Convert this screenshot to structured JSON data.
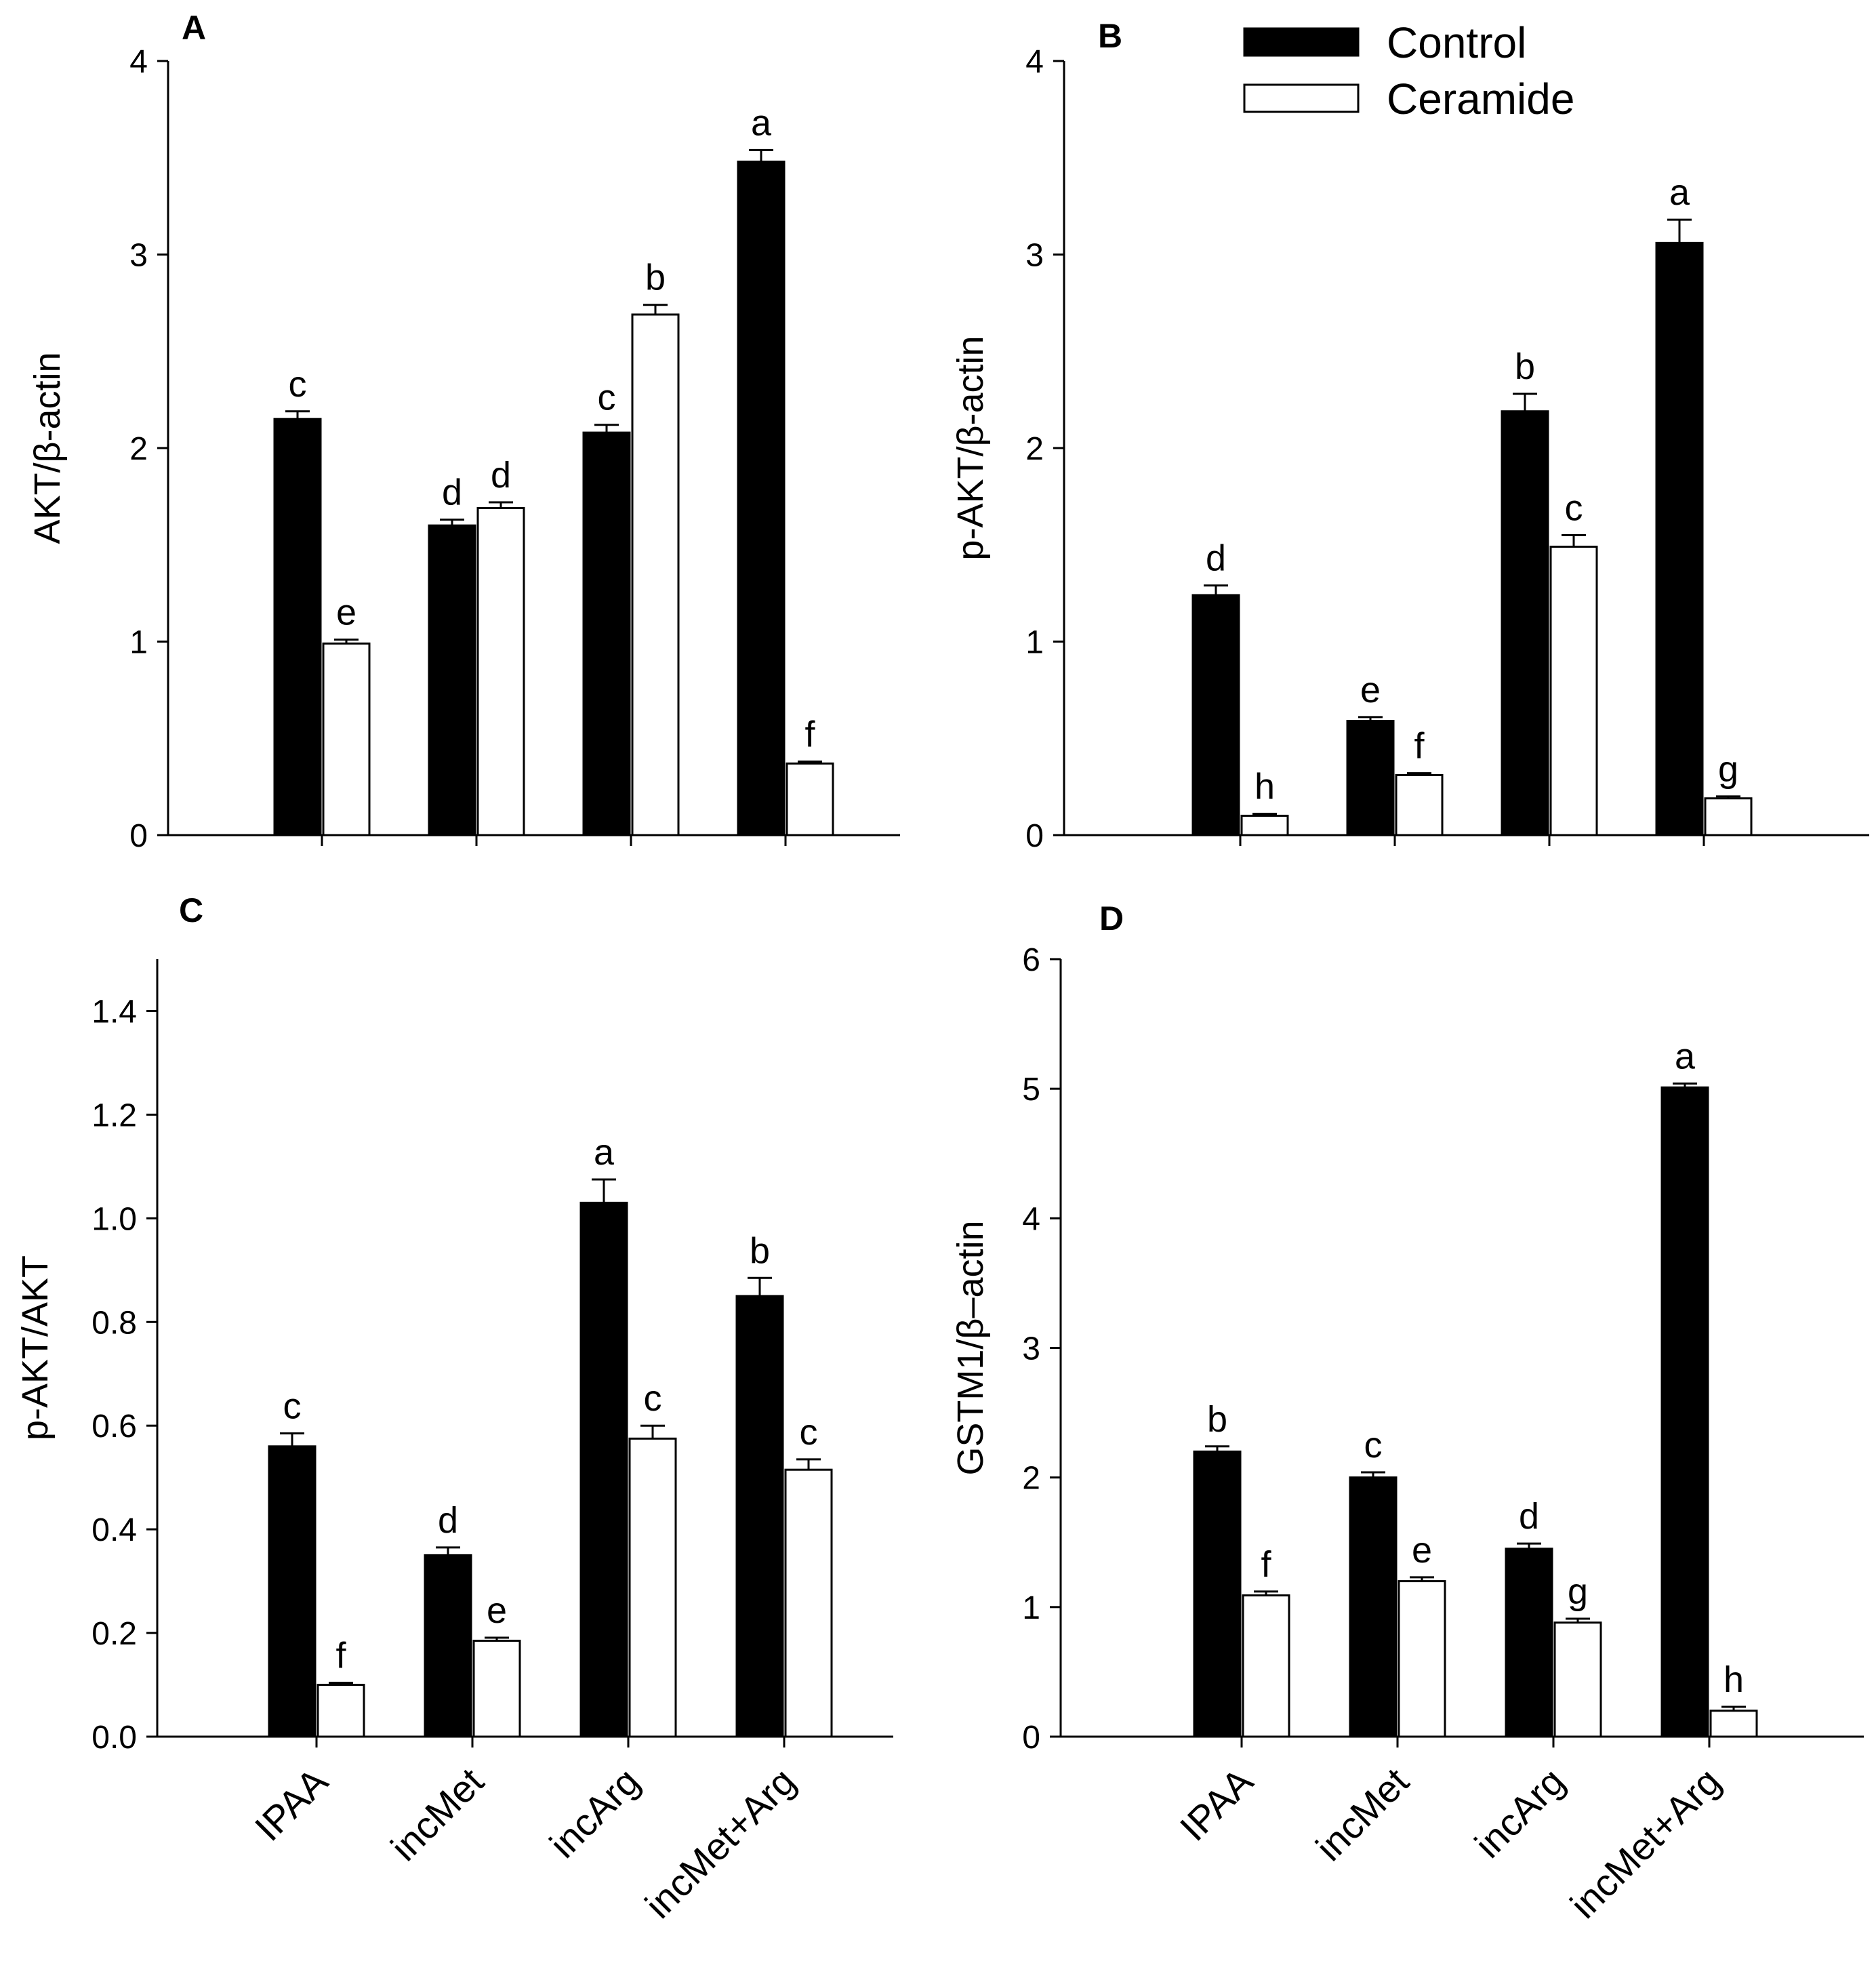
{
  "legend": {
    "entries": [
      {
        "name": "Control",
        "color": "#000000"
      },
      {
        "name": "Ceramide",
        "color": "#ffffff"
      }
    ],
    "placement": "top-right of panel B"
  },
  "chart_data": [
    {
      "type": "bar",
      "panel": "A",
      "ylabel": "AKT/β-actin",
      "ylim": [
        0,
        4
      ],
      "yticks": [
        "0",
        "1",
        "2",
        "3",
        "4"
      ],
      "categories": [
        "IPAA",
        "incMet",
        "incArg",
        "incMet+Arg"
      ],
      "show_category_labels": false,
      "series": [
        {
          "name": "Control",
          "values": [
            2.15,
            1.6,
            2.08,
            3.48
          ],
          "errors": [
            0.04,
            0.03,
            0.04,
            0.06
          ],
          "letters": [
            "c",
            "d",
            "c",
            "a"
          ]
        },
        {
          "name": "Ceramide",
          "values": [
            0.99,
            1.69,
            2.69,
            0.37
          ],
          "errors": [
            0.02,
            0.03,
            0.05,
            0.01
          ],
          "letters": [
            "e",
            "d",
            "b",
            "f"
          ]
        }
      ]
    },
    {
      "type": "bar",
      "panel": "B",
      "ylabel": "p-AKT/β-actin",
      "ylim": [
        0,
        4
      ],
      "yticks": [
        "0",
        "1",
        "2",
        "3",
        "4"
      ],
      "categories": [
        "IPAA",
        "incMet",
        "incArg",
        "incMet+Arg"
      ],
      "show_category_labels": false,
      "series": [
        {
          "name": "Control",
          "values": [
            1.24,
            0.59,
            2.19,
            3.06
          ],
          "errors": [
            0.05,
            0.02,
            0.09,
            0.12
          ],
          "letters": [
            "d",
            "e",
            "b",
            "a"
          ]
        },
        {
          "name": "Ceramide",
          "values": [
            0.1,
            0.31,
            1.49,
            0.19
          ],
          "errors": [
            0.01,
            0.01,
            0.06,
            0.01
          ],
          "letters": [
            "h",
            "f",
            "c",
            "g"
          ]
        }
      ]
    },
    {
      "type": "bar",
      "panel": "C",
      "ylabel": "p-AKT/AKT",
      "ylim": [
        0,
        1.5
      ],
      "yticks": [
        "0.0",
        "0.2",
        "0.4",
        "0.6",
        "0.8",
        "1.0",
        "1.2",
        "1.4"
      ],
      "categories": [
        "IPAA",
        "incMet",
        "incArg",
        "incMet+Arg"
      ],
      "show_category_labels": true,
      "series": [
        {
          "name": "Control",
          "values": [
            0.56,
            0.35,
            1.03,
            0.85
          ],
          "errors": [
            0.025,
            0.015,
            0.045,
            0.035
          ],
          "letters": [
            "c",
            "d",
            "a",
            "b"
          ]
        },
        {
          "name": "Ceramide",
          "values": [
            0.1,
            0.185,
            0.575,
            0.515
          ],
          "errors": [
            0.004,
            0.006,
            0.025,
            0.02
          ],
          "letters": [
            "f",
            "e",
            "c",
            "c"
          ]
        }
      ]
    },
    {
      "type": "bar",
      "panel": "D",
      "ylabel": "GSTM1/β–actin",
      "ylim": [
        0,
        6
      ],
      "yticks": [
        "0",
        "1",
        "2",
        "3",
        "4",
        "5",
        "6"
      ],
      "categories": [
        "IPAA",
        "incMet",
        "incArg",
        "incMet+Arg"
      ],
      "show_category_labels": true,
      "series": [
        {
          "name": "Control",
          "values": [
            2.2,
            2.0,
            1.45,
            5.01
          ],
          "errors": [
            0.04,
            0.04,
            0.04,
            0.03
          ],
          "letters": [
            "b",
            "c",
            "d",
            "a"
          ]
        },
        {
          "name": "Ceramide",
          "values": [
            1.09,
            1.2,
            0.88,
            0.2
          ],
          "errors": [
            0.03,
            0.03,
            0.03,
            0.03
          ],
          "letters": [
            "f",
            "e",
            "g",
            "h"
          ]
        }
      ]
    }
  ]
}
